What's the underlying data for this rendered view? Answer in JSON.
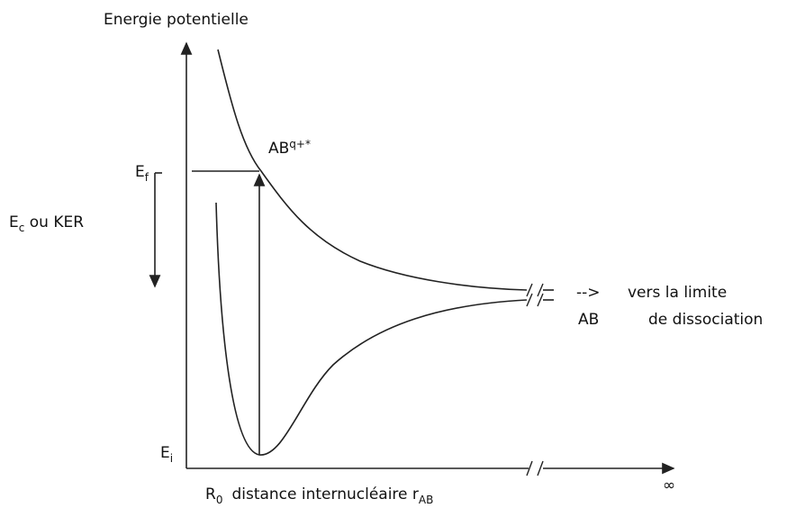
{
  "axis": {
    "y_label": "Energie potentielle",
    "x_label_main": "R",
    "x_label_main_sub": "0",
    "x_label_text": "distance internucléaire r",
    "x_label_sub": "AB",
    "infinity": "∞"
  },
  "levels": {
    "final": {
      "main": "E",
      "sub": "f"
    },
    "initial": {
      "main": "E",
      "sub": "i"
    }
  },
  "kinetic": {
    "main": "E",
    "sub": "c",
    "rest": " ou KER"
  },
  "states": {
    "upper": {
      "main": "AB",
      "sup": "q+*"
    },
    "lower": "AB"
  },
  "notes": {
    "arrow": "-->",
    "line1": "vers la limite",
    "line2": "de dissociation"
  }
}
